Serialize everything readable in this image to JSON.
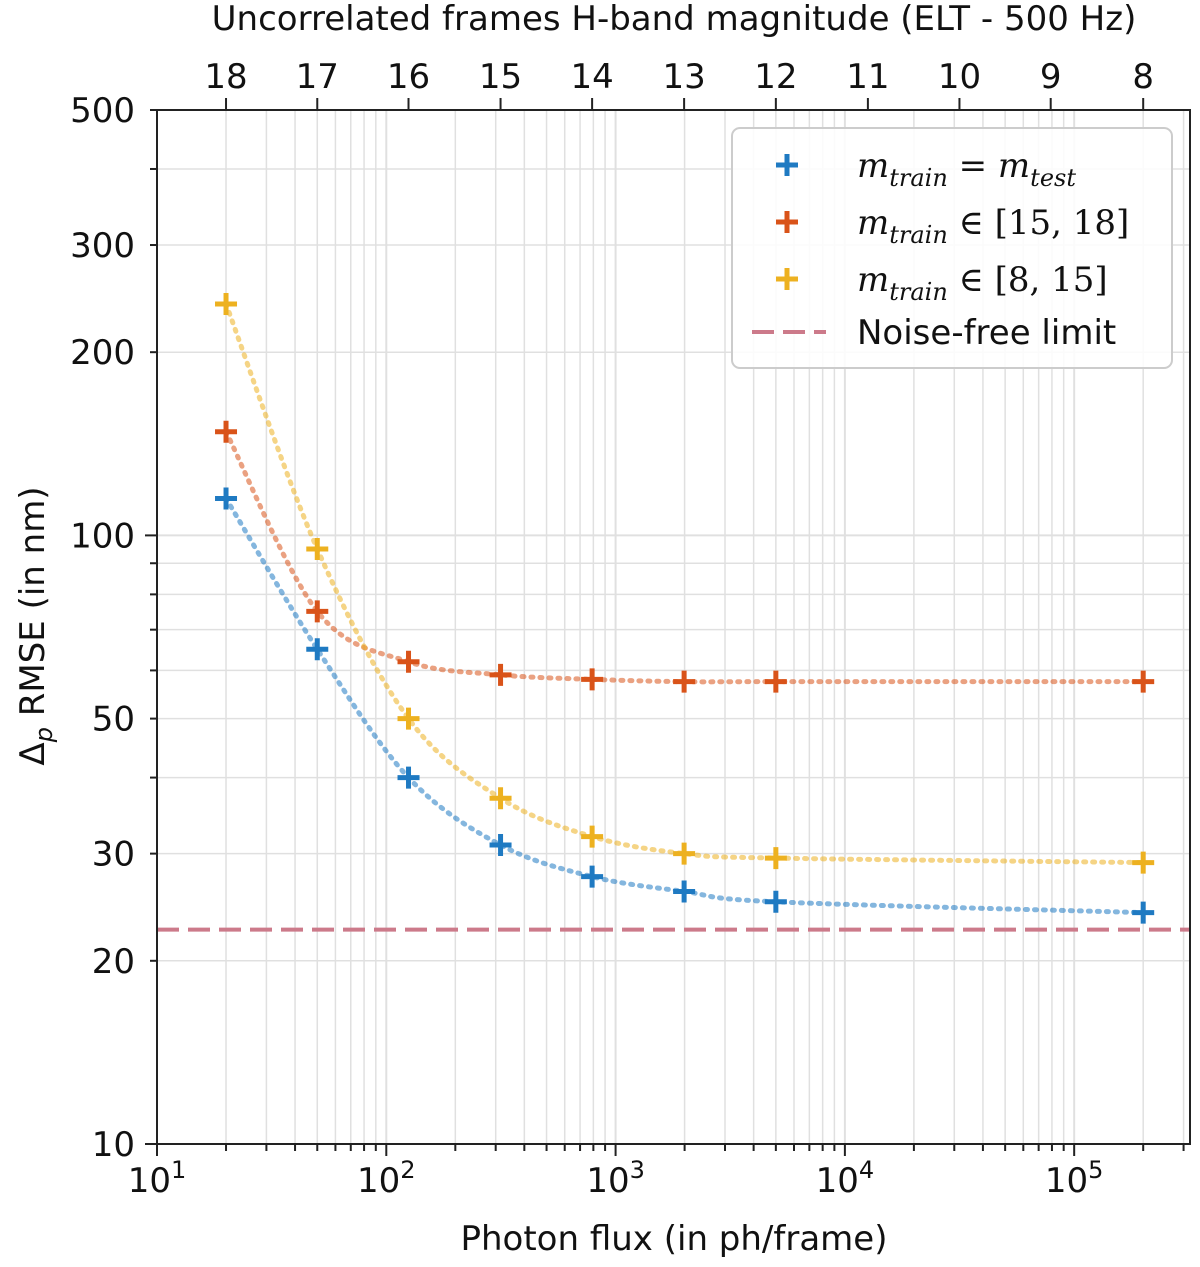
{
  "chart_data": {
    "type": "scatter",
    "x_scale": "log",
    "y_scale": "log",
    "xlim": [
      10,
      320000
    ],
    "ylim": [
      10,
      500
    ],
    "grid": true,
    "xlabel": "Photon flux (in ph/frame)",
    "ylabel_symbol": "Δ",
    "ylabel_sub": "p",
    "ylabel_rest": " RMSE (in nm)",
    "top_axis": {
      "title": "Uncorrelated frames H-band magnitude (ELT - 500 Hz)",
      "ticks": [
        {
          "x": 20,
          "label": "18"
        },
        {
          "x": 50,
          "label": "17"
        },
        {
          "x": 125,
          "label": "16"
        },
        {
          "x": 315,
          "label": "15"
        },
        {
          "x": 790,
          "label": "14"
        },
        {
          "x": 1990,
          "label": "13"
        },
        {
          "x": 5000,
          "label": "12"
        },
        {
          "x": 12600,
          "label": "11"
        },
        {
          "x": 31600,
          "label": "10"
        },
        {
          "x": 79000,
          "label": "9"
        },
        {
          "x": 200000,
          "label": "8"
        }
      ]
    },
    "x_major_ticks": [
      {
        "value": 10,
        "base": "10",
        "exp": "1"
      },
      {
        "value": 100,
        "base": "10",
        "exp": "2"
      },
      {
        "value": 1000,
        "base": "10",
        "exp": "3"
      },
      {
        "value": 10000,
        "base": "10",
        "exp": "4"
      },
      {
        "value": 100000,
        "base": "10",
        "exp": "5"
      }
    ],
    "y_ticks": [
      {
        "value": 10,
        "label": "10"
      },
      {
        "value": 20,
        "label": "20"
      },
      {
        "value": 30,
        "label": "30"
      },
      {
        "value": 50,
        "label": "50"
      },
      {
        "value": 100,
        "label": "100"
      },
      {
        "value": 200,
        "label": "200"
      },
      {
        "value": 300,
        "label": "300"
      },
      {
        "value": 500,
        "label": "500"
      }
    ],
    "x": [
      20,
      50,
      125,
      315,
      790,
      1990,
      5000,
      200000
    ],
    "series": [
      {
        "name": "m_train = m_test",
        "color": "#1f7ac2",
        "values": [
          115,
          65,
          40,
          31,
          27.5,
          26,
          25,
          24
        ]
      },
      {
        "name": "m_train ∈ [15, 18]",
        "color": "#d95319",
        "values": [
          148,
          75,
          62,
          59,
          58,
          57.5,
          57.5,
          57.5
        ]
      },
      {
        "name": "m_train ∈ [8, 15]",
        "color": "#edb120",
        "values": [
          240,
          95,
          50,
          37,
          32,
          30,
          29.5,
          29
        ]
      }
    ],
    "reference_line": {
      "name": "Noise-free limit",
      "value": 22.5,
      "color": "#cc7a8a",
      "style": "dashed"
    },
    "legend": {
      "position": "top-right",
      "entries": [
        {
          "var": "m",
          "sub": "train",
          "op": " = ",
          "rhs_var": "m",
          "rhs_sub": "test",
          "rhs": ""
        },
        {
          "var": "m",
          "sub": "train",
          "op": " ∈ ",
          "rhs_var": "",
          "rhs_sub": "",
          "rhs": "[15, 18]"
        },
        {
          "var": "m",
          "sub": "train",
          "op": " ∈ ",
          "rhs_var": "",
          "rhs_sub": "",
          "rhs": "[8, 15]"
        },
        {
          "label": "Noise-free limit"
        }
      ]
    }
  }
}
